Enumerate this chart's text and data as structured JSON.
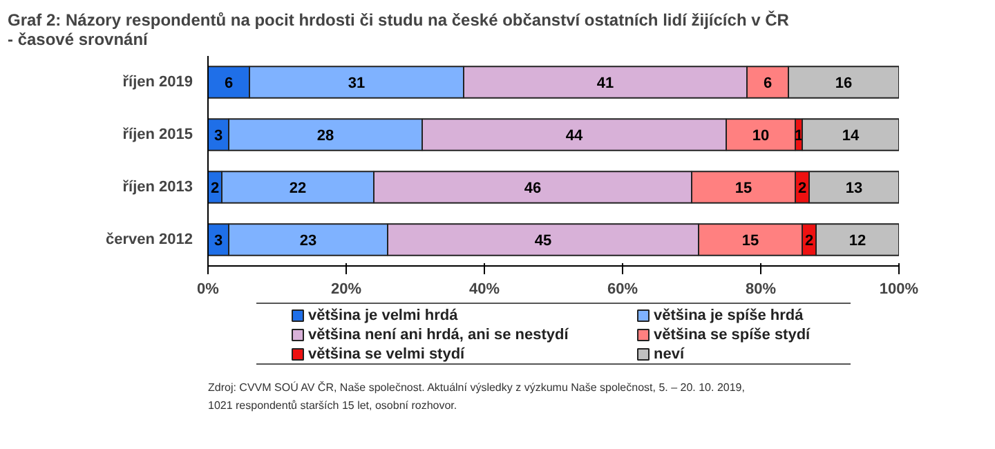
{
  "chart_data": {
    "type": "bar",
    "orientation": "horizontal",
    "stacked": true,
    "title": "Graf 2: Názory respondentů na pocit hrdosti či studu na české občanství ostatních lidí žijících v ČR - časové srovnání",
    "categories": [
      "říjen 2019",
      "říjen 2015",
      "říjen 2013",
      "červen 2012"
    ],
    "series": [
      {
        "name": "většina je velmi hrdá",
        "color": "#1f6fe8",
        "values": [
          6,
          3,
          2,
          3
        ]
      },
      {
        "name": "většina je spíše hrdá",
        "color": "#7fb2ff",
        "values": [
          31,
          28,
          22,
          23
        ]
      },
      {
        "name": "většina není ani hrdá, ani se nestydí",
        "color": "#d8b1d8",
        "values": [
          41,
          44,
          46,
          45
        ]
      },
      {
        "name": "většina se spíše stydí",
        "color": "#ff8080",
        "values": [
          6,
          10,
          15,
          15
        ]
      },
      {
        "name": "většina se velmi stydí",
        "color": "#ee1111",
        "values": [
          null,
          1,
          2,
          2
        ]
      },
      {
        "name": "neví",
        "color": "#c0c0c0",
        "values": [
          16,
          14,
          13,
          12
        ]
      }
    ],
    "xlim": [
      0,
      100
    ],
    "xticks": [
      {
        "value": 0,
        "label": "0%"
      },
      {
        "value": 20,
        "label": "20%"
      },
      {
        "value": 40,
        "label": "40%"
      },
      {
        "value": 60,
        "label": "60%"
      },
      {
        "value": 80,
        "label": "80%"
      },
      {
        "value": 100,
        "label": "100%"
      }
    ],
    "data_labels": true,
    "legend": "bottom",
    "grid": false,
    "annotations": [
      "Zdroj: CVVM SOÚ AV ČR, Naše společnost. Aktuální výsledky z výzkumu Naše společnost, 5. – 20. 10. 2019, 1021 respondentů starších 15 let, osobní rozhovor."
    ]
  }
}
